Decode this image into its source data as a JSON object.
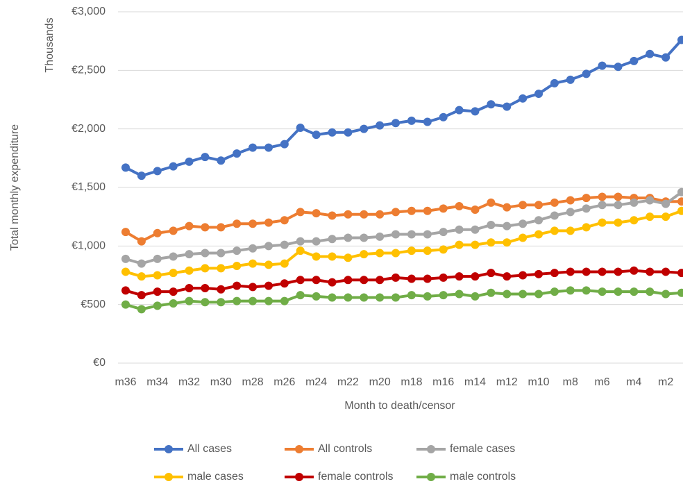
{
  "chart_data": {
    "type": "line",
    "x_label": "Month to death/censor",
    "y_label": "Total monthly expenditure",
    "y_unit_label": "Thousands",
    "categories": [
      "m36",
      null,
      "m34",
      null,
      "m32",
      null,
      "m30",
      null,
      "m28",
      null,
      "m26",
      null,
      "m24",
      null,
      "m22",
      null,
      "m20",
      null,
      "m18",
      null,
      "m16",
      null,
      "m14",
      null,
      "m12",
      null,
      "m10",
      null,
      "m8",
      null,
      "m6",
      null,
      "m4",
      null,
      "m2",
      null
    ],
    "series": [
      {
        "name": "All cases",
        "color": "#4472c4",
        "values": [
          1670,
          1600,
          1640,
          1680,
          1720,
          1760,
          1730,
          1790,
          1840,
          1840,
          1870,
          2010,
          1950,
          1970,
          1970,
          2000,
          2030,
          2050,
          2070,
          2060,
          2100,
          2160,
          2150,
          2210,
          2190,
          2260,
          2300,
          2390,
          2420,
          2470,
          2540,
          2530,
          2580,
          2640,
          2610,
          2760
        ]
      },
      {
        "name": "All controls",
        "color": "#ed7d31",
        "values": [
          1120,
          1040,
          1110,
          1130,
          1170,
          1160,
          1160,
          1190,
          1190,
          1200,
          1220,
          1290,
          1280,
          1260,
          1270,
          1270,
          1270,
          1290,
          1300,
          1300,
          1320,
          1340,
          1310,
          1370,
          1330,
          1350,
          1350,
          1370,
          1390,
          1410,
          1420,
          1420,
          1410,
          1410,
          1380,
          1380
        ]
      },
      {
        "name": "female cases",
        "color": "#a5a5a5",
        "values": [
          890,
          850,
          890,
          910,
          930,
          940,
          940,
          960,
          980,
          1000,
          1010,
          1040,
          1040,
          1060,
          1070,
          1070,
          1080,
          1100,
          1100,
          1100,
          1120,
          1140,
          1140,
          1180,
          1170,
          1190,
          1220,
          1260,
          1290,
          1320,
          1350,
          1350,
          1370,
          1390,
          1360,
          1460
        ]
      },
      {
        "name": "male cases",
        "color": "#ffc000",
        "values": [
          780,
          740,
          750,
          770,
          790,
          810,
          810,
          830,
          850,
          840,
          850,
          960,
          910,
          910,
          900,
          930,
          940,
          940,
          960,
          960,
          970,
          1010,
          1010,
          1030,
          1030,
          1070,
          1100,
          1130,
          1130,
          1160,
          1200,
          1200,
          1220,
          1250,
          1250,
          1300
        ]
      },
      {
        "name": "female controls",
        "color": "#c00000",
        "values": [
          620,
          580,
          610,
          610,
          640,
          640,
          630,
          660,
          650,
          660,
          680,
          710,
          710,
          690,
          710,
          710,
          710,
          730,
          720,
          720,
          730,
          740,
          740,
          770,
          740,
          750,
          760,
          770,
          780,
          780,
          780,
          780,
          790,
          780,
          780,
          770
        ]
      },
      {
        "name": "male controls",
        "color": "#70ad47",
        "values": [
          500,
          460,
          490,
          510,
          530,
          520,
          520,
          530,
          530,
          530,
          530,
          580,
          570,
          560,
          560,
          560,
          560,
          560,
          580,
          570,
          580,
          590,
          570,
          600,
          590,
          590,
          590,
          610,
          620,
          620,
          610,
          610,
          610,
          610,
          590,
          600
        ]
      }
    ],
    "ylim": [
      0,
      3000
    ],
    "yticks": [
      {
        "value": 0,
        "label": "€0"
      },
      {
        "value": 500,
        "label": "€500"
      },
      {
        "value": 1000,
        "label": "€1,000"
      },
      {
        "value": 1500,
        "label": "€1,500"
      },
      {
        "value": 2000,
        "label": "€2,000"
      },
      {
        "value": 2500,
        "label": "€2,500"
      },
      {
        "value": 3000,
        "label": "€3,000"
      }
    ],
    "grid": true,
    "legend": "bottom"
  }
}
